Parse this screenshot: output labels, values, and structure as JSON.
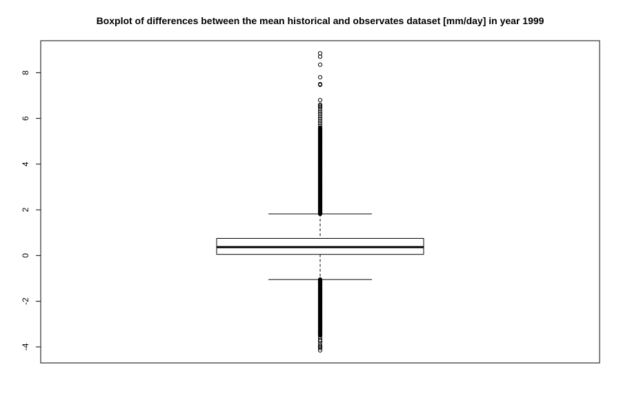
{
  "chart_data": {
    "type": "boxplot",
    "title": "Boxplot of differences between the mean historical and observates dataset [mm/day] in year 1999",
    "xlabel": "",
    "ylabel": "",
    "ylim": [
      -4.7,
      9.4
    ],
    "yticks": [
      -4,
      -2,
      0,
      2,
      4,
      6,
      8
    ],
    "ytick_labels": [
      "-4",
      "-2",
      "0",
      "2",
      "4",
      "6",
      "8"
    ],
    "grid": false,
    "legend": "none",
    "box": {
      "lower_whisker": -1.05,
      "q1": 0.05,
      "median": 0.37,
      "q3": 0.75,
      "upper_whisker": 1.82
    },
    "outliers_low_dense_range": [
      -3.5,
      -1.05
    ],
    "outliers_high_dense_range": [
      1.82,
      5.6
    ],
    "outliers_high": [
      5.7,
      5.8,
      5.9,
      6.0,
      6.1,
      6.2,
      6.3,
      6.4,
      6.5,
      6.55,
      6.6,
      6.8,
      7.47,
      7.5,
      7.8,
      8.35,
      8.7,
      8.85
    ],
    "outliers_low": [
      -3.6,
      -3.7,
      -3.75,
      -3.85,
      -3.95,
      -4.0,
      -4.05,
      -4.15
    ]
  }
}
